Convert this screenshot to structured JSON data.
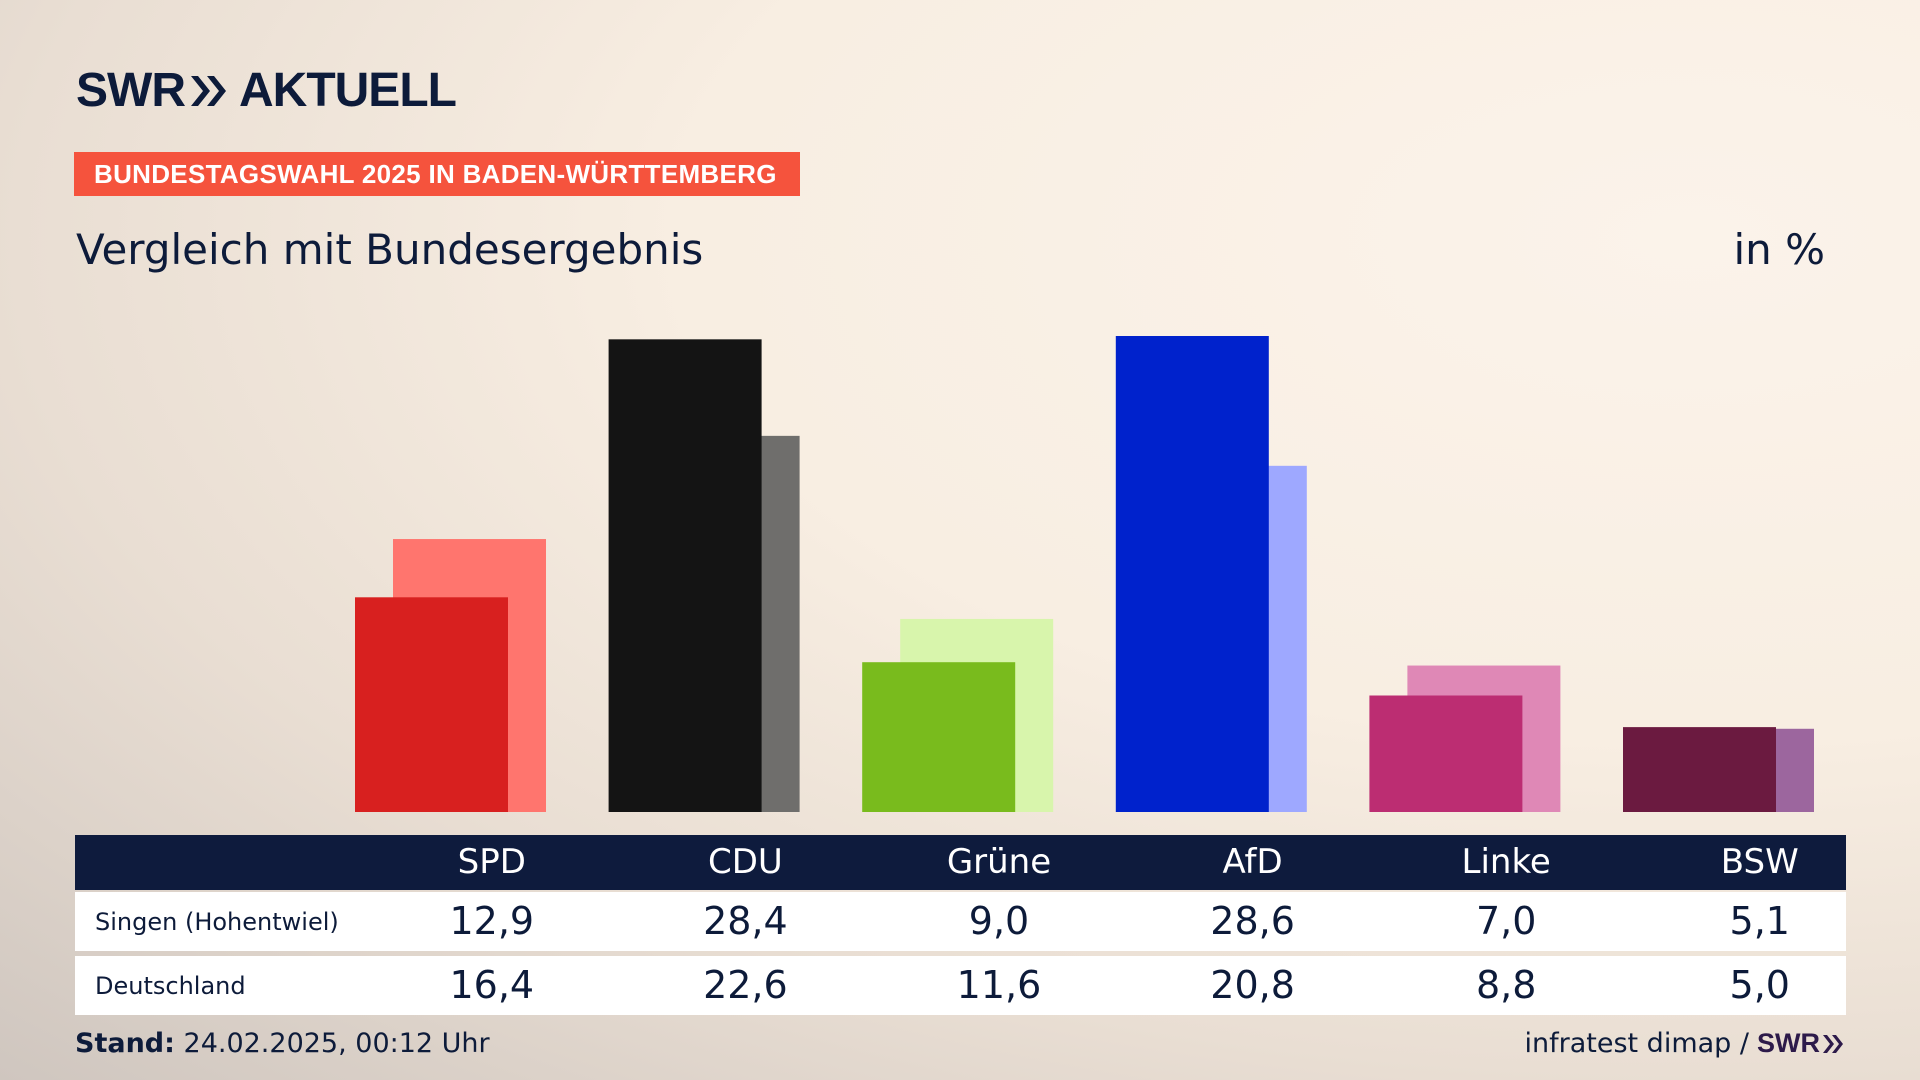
{
  "brand": {
    "logo_left": "SWR",
    "logo_right": "AKTUELL",
    "source": "infratest dimap /",
    "source_logo": "SWR"
  },
  "header": {
    "banner": "BUNDESTAGSWAHL 2025 IN BADEN-WÜRTTEMBERG",
    "subtitle": "Vergleich mit Bundesergebnis",
    "unit": "in %"
  },
  "footer": {
    "stand_label": "Stand:",
    "stand_value": "24.02.2025, 00:12 Uhr"
  },
  "table": {
    "row1_label": "Singen (Hohentwiel)",
    "row2_label": "Deutschland"
  },
  "chart_data": {
    "type": "bar",
    "title": "Vergleich mit Bundesergebnis",
    "categories": [
      "SPD",
      "CDU",
      "Grüne",
      "AfD",
      "Linke",
      "BSW"
    ],
    "series": [
      {
        "name": "Singen (Hohentwiel)",
        "values": [
          "12,9",
          "28,4",
          "9,0",
          "28,6",
          "7,0",
          "5,1"
        ],
        "numeric": [
          12.9,
          28.4,
          9.0,
          28.6,
          7.0,
          5.1
        ],
        "colors": [
          "#d8201f",
          "#141414",
          "#79bb1d",
          "#0022cc",
          "#bc2d72",
          "#6b1a40"
        ]
      },
      {
        "name": "Deutschland",
        "values": [
          "16,4",
          "22,6",
          "11,6",
          "20,8",
          "8,8",
          "5,0"
        ],
        "numeric": [
          16.4,
          22.6,
          11.6,
          20.8,
          8.8,
          5.0
        ],
        "colors": [
          "#ff756e",
          "#6f6e6c",
          "#d8f5ac",
          "#9ea8ff",
          "#df88b6",
          "#9c669e"
        ]
      }
    ],
    "ylim": [
      0,
      28.6
    ],
    "grid": false,
    "legend": "table-below"
  }
}
